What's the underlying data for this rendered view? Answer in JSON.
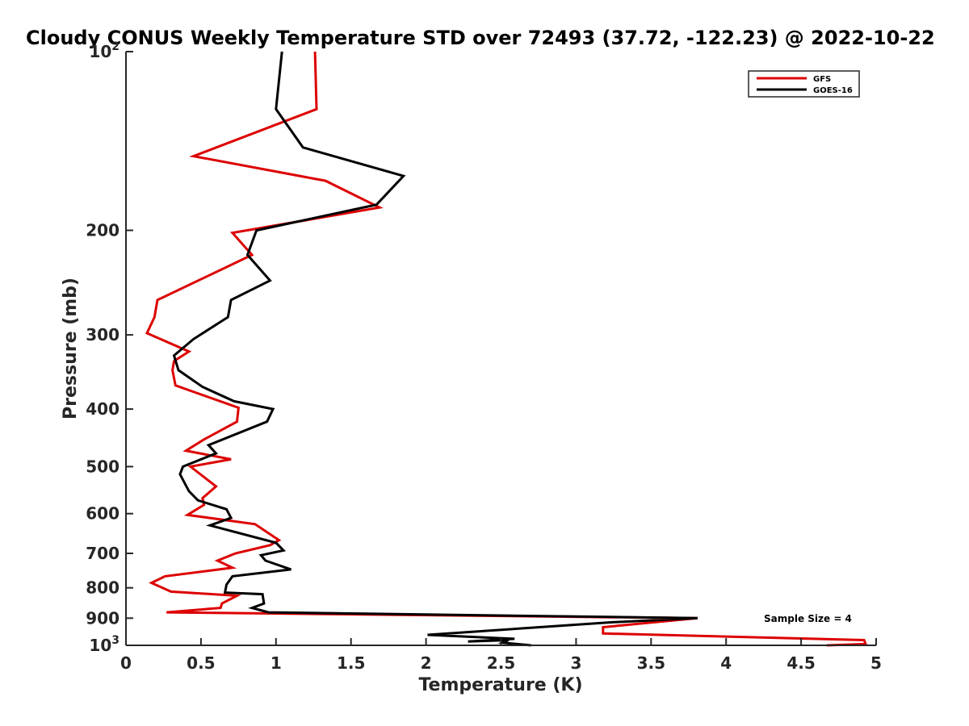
{
  "chart_data": {
    "type": "line",
    "title": "Cloudy CONUS Weekly Temperature STD over 72493 (37.72, -122.23) @ 2022-10-22",
    "xlabel": "Temperature (K)",
    "ylabel": "Pressure (mb)",
    "xlim": [
      0,
      5
    ],
    "ylim": [
      100,
      1000
    ],
    "yscale": "log",
    "y_reversed": true,
    "x_ticks": [
      "0",
      "0.5",
      "1",
      "1.5",
      "2",
      "2.5",
      "3",
      "3.5",
      "4",
      "4.5",
      "5"
    ],
    "y_ticks": [
      {
        "value": 100,
        "label": "10",
        "sup": "2"
      },
      {
        "value": 200,
        "label": "200",
        "sup": ""
      },
      {
        "value": 300,
        "label": "300",
        "sup": ""
      },
      {
        "value": 400,
        "label": "400",
        "sup": ""
      },
      {
        "value": 500,
        "label": "500",
        "sup": ""
      },
      {
        "value": 600,
        "label": "600",
        "sup": ""
      },
      {
        "value": 700,
        "label": "700",
        "sup": ""
      },
      {
        "value": 800,
        "label": "800",
        "sup": ""
      },
      {
        "value": 900,
        "label": "900",
        "sup": ""
      },
      {
        "value": 1000,
        "label": "10",
        "sup": "3"
      }
    ],
    "grid": false,
    "legend_position": "top-right",
    "annotation": "Sample Size = 4",
    "series": [
      {
        "name": "GFS",
        "color": "#dd0000",
        "points": [
          [
            1.26,
            100
          ],
          [
            1.27,
            125
          ],
          [
            0.45,
            150
          ],
          [
            1.33,
            165
          ],
          [
            1.69,
            183
          ],
          [
            0.71,
            202
          ],
          [
            0.84,
            220
          ],
          [
            0.21,
            262
          ],
          [
            0.19,
            280
          ],
          [
            0.14,
            298
          ],
          [
            0.42,
            320
          ],
          [
            0.32,
            332
          ],
          [
            0.31,
            344
          ],
          [
            0.33,
            365
          ],
          [
            0.75,
            398
          ],
          [
            0.74,
            420
          ],
          [
            0.52,
            450
          ],
          [
            0.4,
            470
          ],
          [
            0.7,
            486
          ],
          [
            0.43,
            500
          ],
          [
            0.6,
            540
          ],
          [
            0.51,
            565
          ],
          [
            0.52,
            580
          ],
          [
            0.41,
            603
          ],
          [
            0.86,
            625
          ],
          [
            1.02,
            665
          ],
          [
            0.96,
            678
          ],
          [
            0.73,
            700
          ],
          [
            0.61,
            720
          ],
          [
            0.71,
            740
          ],
          [
            0.26,
            765
          ],
          [
            0.17,
            785
          ],
          [
            0.3,
            812
          ],
          [
            0.74,
            825
          ],
          [
            0.64,
            850
          ],
          [
            0.63,
            865
          ],
          [
            0.27,
            880
          ],
          [
            3.81,
            900
          ],
          [
            3.18,
            932
          ],
          [
            3.18,
            955
          ],
          [
            4.92,
            980
          ],
          [
            4.93,
            995
          ],
          [
            4.67,
            1000
          ]
        ]
      },
      {
        "name": "GOES-16",
        "color": "#000000",
        "points": [
          [
            1.04,
            100
          ],
          [
            1.0,
            125
          ],
          [
            1.18,
            145
          ],
          [
            1.85,
            162
          ],
          [
            1.67,
            181
          ],
          [
            0.87,
            200
          ],
          [
            0.81,
            220
          ],
          [
            0.96,
            243
          ],
          [
            0.7,
            262
          ],
          [
            0.68,
            280
          ],
          [
            0.45,
            305
          ],
          [
            0.32,
            325
          ],
          [
            0.35,
            344
          ],
          [
            0.51,
            367
          ],
          [
            0.72,
            388
          ],
          [
            0.98,
            400
          ],
          [
            0.94,
            420
          ],
          [
            0.55,
            460
          ],
          [
            0.6,
            475
          ],
          [
            0.38,
            500
          ],
          [
            0.36,
            515
          ],
          [
            0.42,
            550
          ],
          [
            0.48,
            570
          ],
          [
            0.67,
            590
          ],
          [
            0.7,
            610
          ],
          [
            0.56,
            628
          ],
          [
            1.0,
            672
          ],
          [
            1.05,
            692
          ],
          [
            0.9,
            705
          ],
          [
            0.93,
            720
          ],
          [
            1.1,
            745
          ],
          [
            0.71,
            765
          ],
          [
            0.67,
            790
          ],
          [
            0.66,
            815
          ],
          [
            0.91,
            820
          ],
          [
            0.92,
            850
          ],
          [
            0.84,
            865
          ],
          [
            0.95,
            880
          ],
          [
            3.81,
            900
          ],
          [
            3.22,
            915
          ],
          [
            2.01,
            960
          ],
          [
            2.59,
            975
          ],
          [
            2.28,
            985
          ],
          [
            2.55,
            980
          ],
          [
            2.51,
            990
          ],
          [
            2.7,
            1000
          ]
        ]
      }
    ]
  }
}
